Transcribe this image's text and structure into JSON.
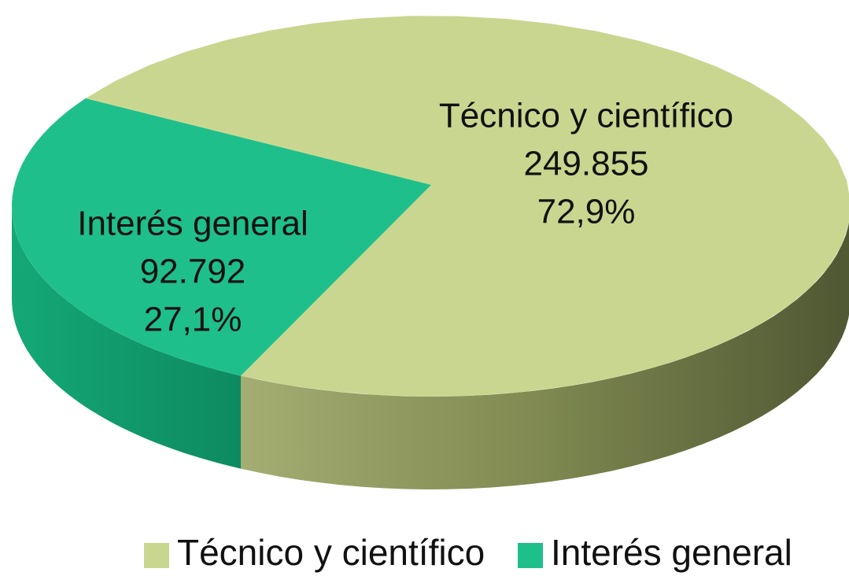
{
  "chart_data": {
    "type": "pie",
    "categories": [
      "Técnico y científico",
      "Interés general"
    ],
    "values": [
      249855,
      92792
    ],
    "value_labels": [
      "249.855",
      "92.792"
    ],
    "percentages": [
      72.9,
      27.1
    ],
    "percentage_labels": [
      "72,9%",
      "27,1%"
    ],
    "colors": [
      "#c9d68f",
      "#1fbf8b"
    ],
    "legend": "bottom"
  }
}
